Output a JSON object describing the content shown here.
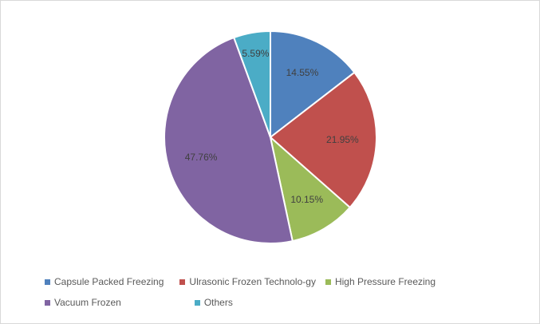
{
  "chart_data": {
    "type": "pie",
    "title": "",
    "categories": [
      "Capsule Packed Freezing",
      "Ulrasonic Frozen Technolo-gy",
      "High Pressure Freezing",
      "Vacuum Frozen",
      "Others"
    ],
    "values": [
      14.55,
      21.95,
      10.15,
      47.76,
      5.59
    ],
    "data_labels": [
      "14.55%",
      "21.95%",
      "10.15%",
      "47.76%",
      "5.59%"
    ],
    "colors": [
      "#4f81bd",
      "#c0504d",
      "#9bbb59",
      "#8064a2",
      "#4bacc6"
    ],
    "start_angle_deg": 0,
    "direction": "clockwise",
    "legend_position": "bottom"
  },
  "legend": {
    "rows": [
      [
        {
          "label": "Capsule Packed Freezing",
          "color": "#4f81bd"
        },
        {
          "label": "Ulrasonic Frozen Technolo-gy",
          "color": "#c0504d"
        },
        {
          "label": "High Pressure Freezing",
          "color": "#9bbb59"
        }
      ],
      [
        {
          "label": "Vacuum Frozen",
          "color": "#8064a2"
        },
        {
          "label": "Others",
          "color": "#4bacc6"
        }
      ]
    ]
  }
}
